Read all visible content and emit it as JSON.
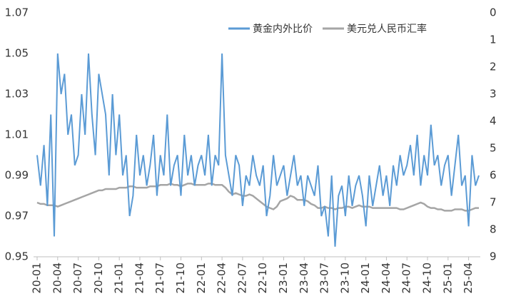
{
  "chart_data": {
    "type": "line",
    "categories": [
      "20-01",
      null,
      null,
      null,
      null,
      null,
      "20-04",
      null,
      null,
      null,
      null,
      null,
      "20-07",
      null,
      null,
      null,
      null,
      null,
      "20-10",
      null,
      null,
      null,
      null,
      null,
      "21-01",
      null,
      null,
      null,
      null,
      null,
      "21-04",
      null,
      null,
      null,
      null,
      null,
      "21-07",
      null,
      null,
      null,
      null,
      null,
      "21-10",
      null,
      null,
      null,
      null,
      null,
      "22-01",
      null,
      null,
      null,
      null,
      null,
      "22-04",
      null,
      null,
      null,
      null,
      null,
      "22-07",
      null,
      null,
      null,
      null,
      null,
      "22-10",
      null,
      null,
      null,
      null,
      null,
      "23-01",
      null,
      null,
      null,
      null,
      null,
      "23-04",
      null,
      null,
      null,
      null,
      null,
      "23-07",
      null,
      null,
      null,
      null,
      null,
      "23-10",
      null,
      null,
      null,
      null,
      null,
      "24-01",
      null,
      null,
      null,
      null,
      null,
      "24-04",
      null,
      null,
      null,
      null,
      null,
      "24-07",
      null,
      null,
      null,
      null,
      null,
      "24-10",
      null,
      null,
      null,
      null,
      null,
      "25-01",
      null,
      null,
      null,
      null,
      null,
      "25-04",
      null,
      null,
      null
    ],
    "series": [
      {
        "name": "黄金内外比价",
        "color": "#5b9bd5",
        "values": [
          1.0,
          0.985,
          1.005,
          0.975,
          1.02,
          0.96,
          1.05,
          1.03,
          1.04,
          1.01,
          1.02,
          0.995,
          1.0,
          1.03,
          1.01,
          1.05,
          1.02,
          1.0,
          1.04,
          1.03,
          1.02,
          0.99,
          1.03,
          1.0,
          1.02,
          0.99,
          1.0,
          0.97,
          0.98,
          1.01,
          0.99,
          1.0,
          0.985,
          0.995,
          1.01,
          0.98,
          1.0,
          0.99,
          1.02,
          0.985,
          0.995,
          1.0,
          0.98,
          1.01,
          0.99,
          1.0,
          0.985,
          0.995,
          1.0,
          0.99,
          1.01,
          0.985,
          1.0,
          0.995,
          1.05,
          1.0,
          0.99,
          0.98,
          1.0,
          0.995,
          0.975,
          0.99,
          0.985,
          1.0,
          0.99,
          0.985,
          0.995,
          0.97,
          0.98,
          1.0,
          0.985,
          0.99,
          0.995,
          0.98,
          0.99,
          1.0,
          0.985,
          0.99,
          0.975,
          0.99,
          0.985,
          0.98,
          0.995,
          0.97,
          0.975,
          0.96,
          0.99,
          0.955,
          0.98,
          0.985,
          0.97,
          0.99,
          0.975,
          0.985,
          0.99,
          0.98,
          0.965,
          0.99,
          0.975,
          0.985,
          0.995,
          0.98,
          0.99,
          0.975,
          0.995,
          0.985,
          1.0,
          0.99,
          0.995,
          1.005,
          0.99,
          1.01,
          0.985,
          1.0,
          0.99,
          1.015,
          0.995,
          1.0,
          0.985,
          0.995,
          1.0,
          0.98,
          0.995,
          1.01,
          0.985,
          0.99,
          0.965,
          1.0,
          0.985,
          0.99
        ]
      },
      {
        "name": "美元兑人民币汇率",
        "color": "#a5a5a5",
        "axis": "y2",
        "values": [
          7.0,
          7.05,
          7.05,
          7.1,
          7.1,
          7.1,
          7.15,
          7.1,
          7.05,
          7.0,
          6.95,
          6.9,
          6.85,
          6.8,
          6.75,
          6.7,
          6.65,
          6.6,
          6.55,
          6.55,
          6.5,
          6.5,
          6.5,
          6.5,
          6.45,
          6.45,
          6.45,
          6.4,
          6.4,
          6.45,
          6.45,
          6.45,
          6.45,
          6.4,
          6.4,
          6.4,
          6.35,
          6.35,
          6.35,
          6.3,
          6.35,
          6.35,
          6.4,
          6.35,
          6.3,
          6.3,
          6.35,
          6.35,
          6.35,
          6.35,
          6.3,
          6.3,
          6.35,
          6.35,
          6.35,
          6.45,
          6.6,
          6.7,
          6.65,
          6.7,
          6.75,
          6.75,
          6.7,
          6.75,
          6.85,
          6.95,
          7.05,
          7.15,
          7.2,
          7.25,
          7.15,
          6.95,
          6.9,
          6.85,
          6.75,
          6.8,
          6.9,
          6.9,
          6.9,
          6.95,
          7.05,
          7.1,
          7.2,
          7.2,
          7.15,
          7.2,
          7.2,
          7.25,
          7.2,
          7.2,
          7.15,
          7.15,
          7.2,
          7.15,
          7.1,
          7.15,
          7.15,
          7.15,
          7.2,
          7.2,
          7.2,
          7.2,
          7.2,
          7.2,
          7.2,
          7.2,
          7.25,
          7.25,
          7.2,
          7.15,
          7.1,
          7.05,
          7.0,
          7.05,
          7.15,
          7.2,
          7.2,
          7.25,
          7.25,
          7.3,
          7.3,
          7.3,
          7.25,
          7.25,
          7.25,
          7.3,
          7.3,
          7.25,
          7.2,
          7.2
        ]
      }
    ],
    "ylim": [
      0.95,
      1.07
    ],
    "yticks": [
      0.95,
      0.97,
      0.99,
      1.01,
      1.03,
      1.05,
      1.07
    ],
    "y2lim": [
      0,
      9
    ],
    "y2ticks": [
      0,
      1,
      2,
      3,
      4,
      5,
      6,
      7,
      8,
      9
    ],
    "y2_reversed": true,
    "legend": "top-right"
  }
}
